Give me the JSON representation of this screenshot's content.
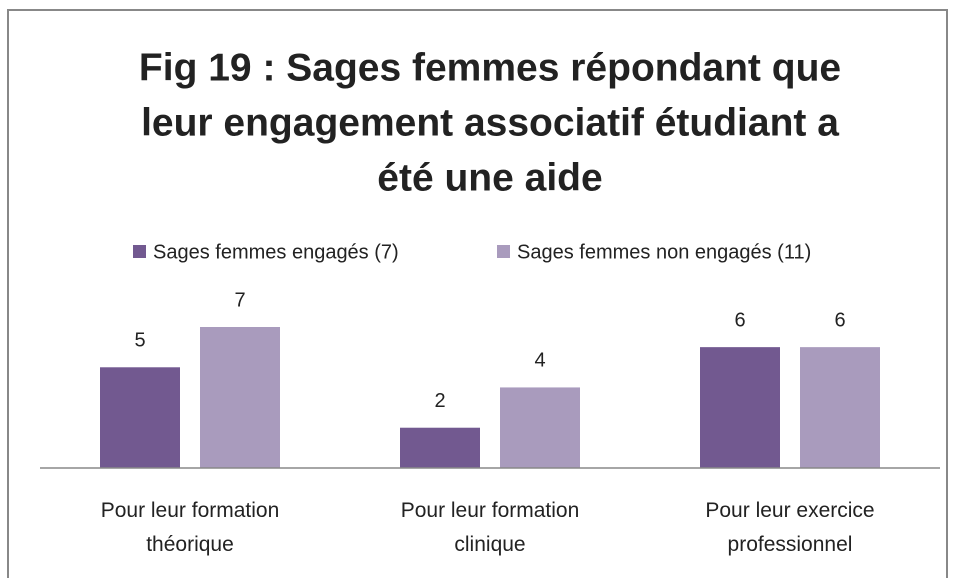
{
  "chart_data": {
    "type": "bar",
    "title": [
      "Fig 19 : Sages femmes répondant que",
      "leur engagement associatif étudiant a",
      "été une aide"
    ],
    "categories": [
      "Pour leur formation théorique",
      "Pour leur formation clinique",
      "Pour leur exercice professionnel"
    ],
    "series": [
      {
        "name": "Sages femmes engagés (7)",
        "color": "#725990",
        "values": [
          5,
          2,
          6
        ]
      },
      {
        "name": "Sages femmes non engagés (11)",
        "color": "#a99bbd",
        "values": [
          7,
          4,
          6
        ]
      }
    ],
    "legend": "top"
  }
}
